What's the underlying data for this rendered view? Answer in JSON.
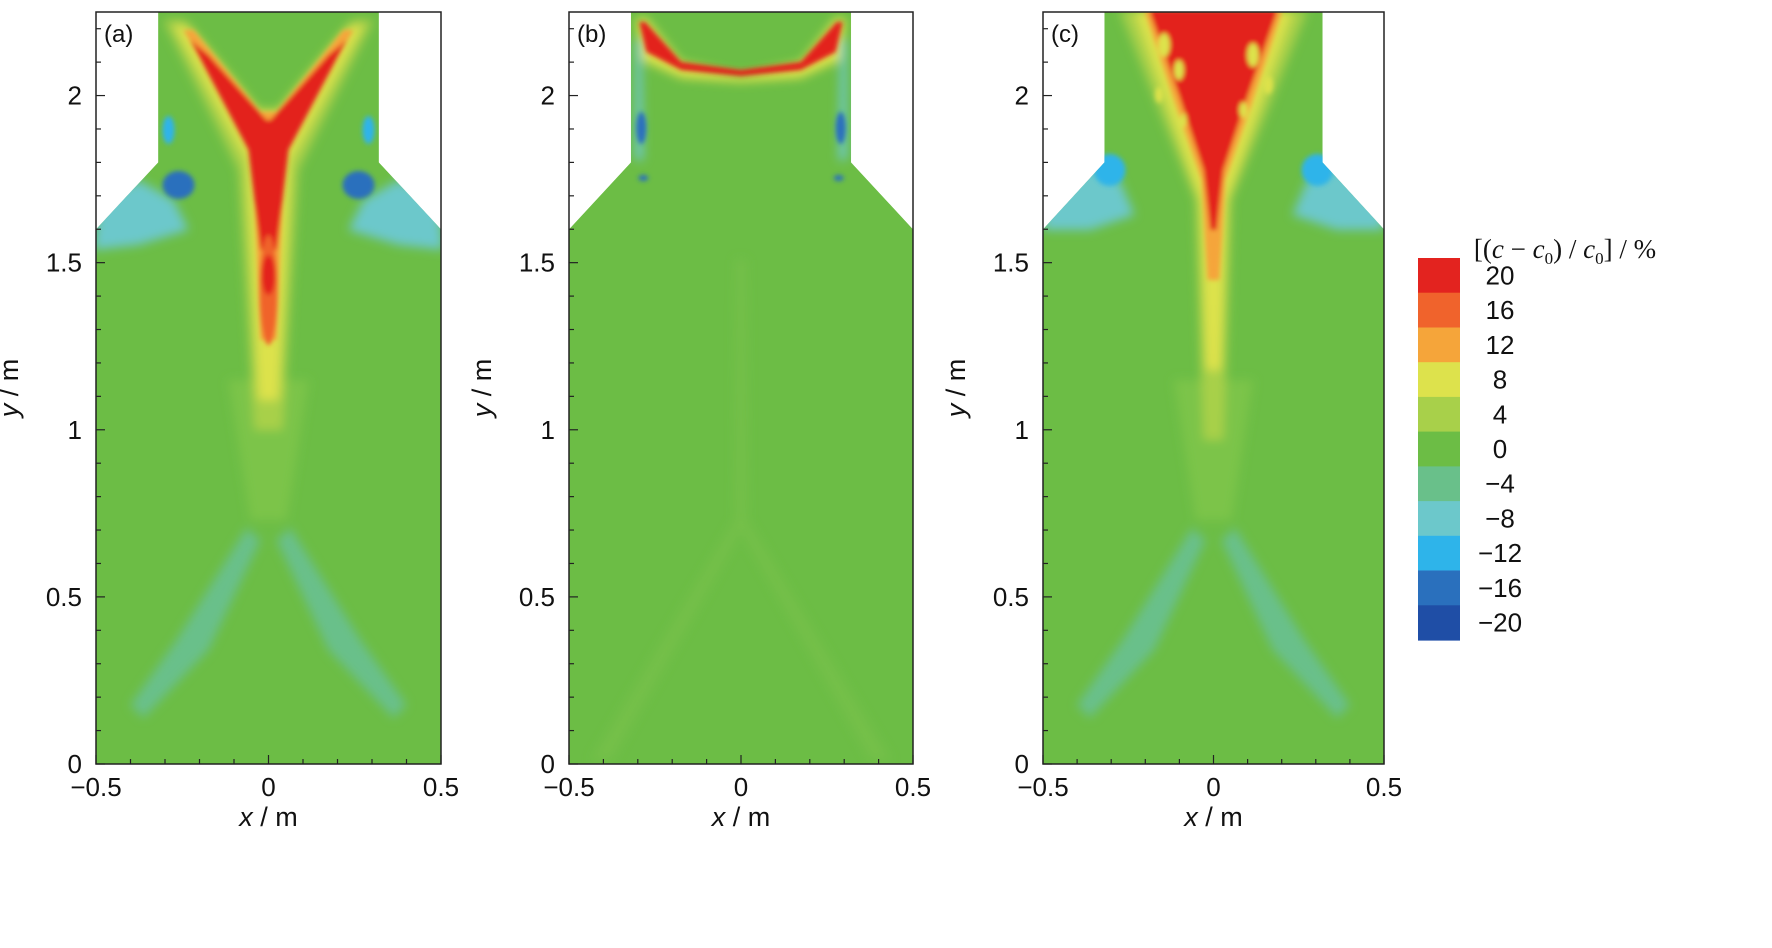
{
  "chart_data": {
    "type": "heatmap",
    "panels": [
      {
        "label": "(a)",
        "xlabel": "x / m",
        "ylabel": "y / m",
        "xticks": [
          "−0.5",
          "0",
          "0.5"
        ],
        "yticks": [
          "0",
          "0.5",
          "1",
          "1.5",
          "2"
        ],
        "xlim": [
          -0.5,
          0.5
        ],
        "ylim": [
          0,
          2.25
        ]
      },
      {
        "label": "(b)",
        "xlabel": "x / m",
        "ylabel": "y / m",
        "xticks": [
          "−0.5",
          "0",
          "0.5"
        ],
        "yticks": [
          "0",
          "0.5",
          "1",
          "1.5",
          "2"
        ],
        "xlim": [
          -0.5,
          0.5
        ],
        "ylim": [
          0,
          2.25
        ]
      },
      {
        "label": "(c)",
        "xlabel": "x / m",
        "ylabel": "y / m",
        "xticks": [
          "−0.5",
          "0",
          "0.5"
        ],
        "yticks": [
          "0",
          "0.5",
          "1",
          "1.5",
          "2"
        ],
        "xlim": [
          -0.5,
          0.5
        ],
        "ylim": [
          0,
          2.25
        ]
      }
    ],
    "colorbar": {
      "title": "[(c − c0) / c0] / %",
      "levels": [
        "20",
        "16",
        "12",
        "8",
        "4",
        "0",
        "−4",
        "−8",
        "−12",
        "−16",
        "−20"
      ],
      "colors": [
        "#e3231f",
        "#f0632c",
        "#f5a53a",
        "#dde24c",
        "#a8d04a",
        "#6cbd45",
        "#69c08a",
        "#6cc8cb",
        "#2eb4ea",
        "#2a70bd",
        "#1f4ea6"
      ]
    },
    "domain": {
      "x_outer": 0.5,
      "x_inner": 0.32,
      "y_step": 1.6,
      "y_shoulder": 1.8,
      "y_top": 2.25
    }
  }
}
